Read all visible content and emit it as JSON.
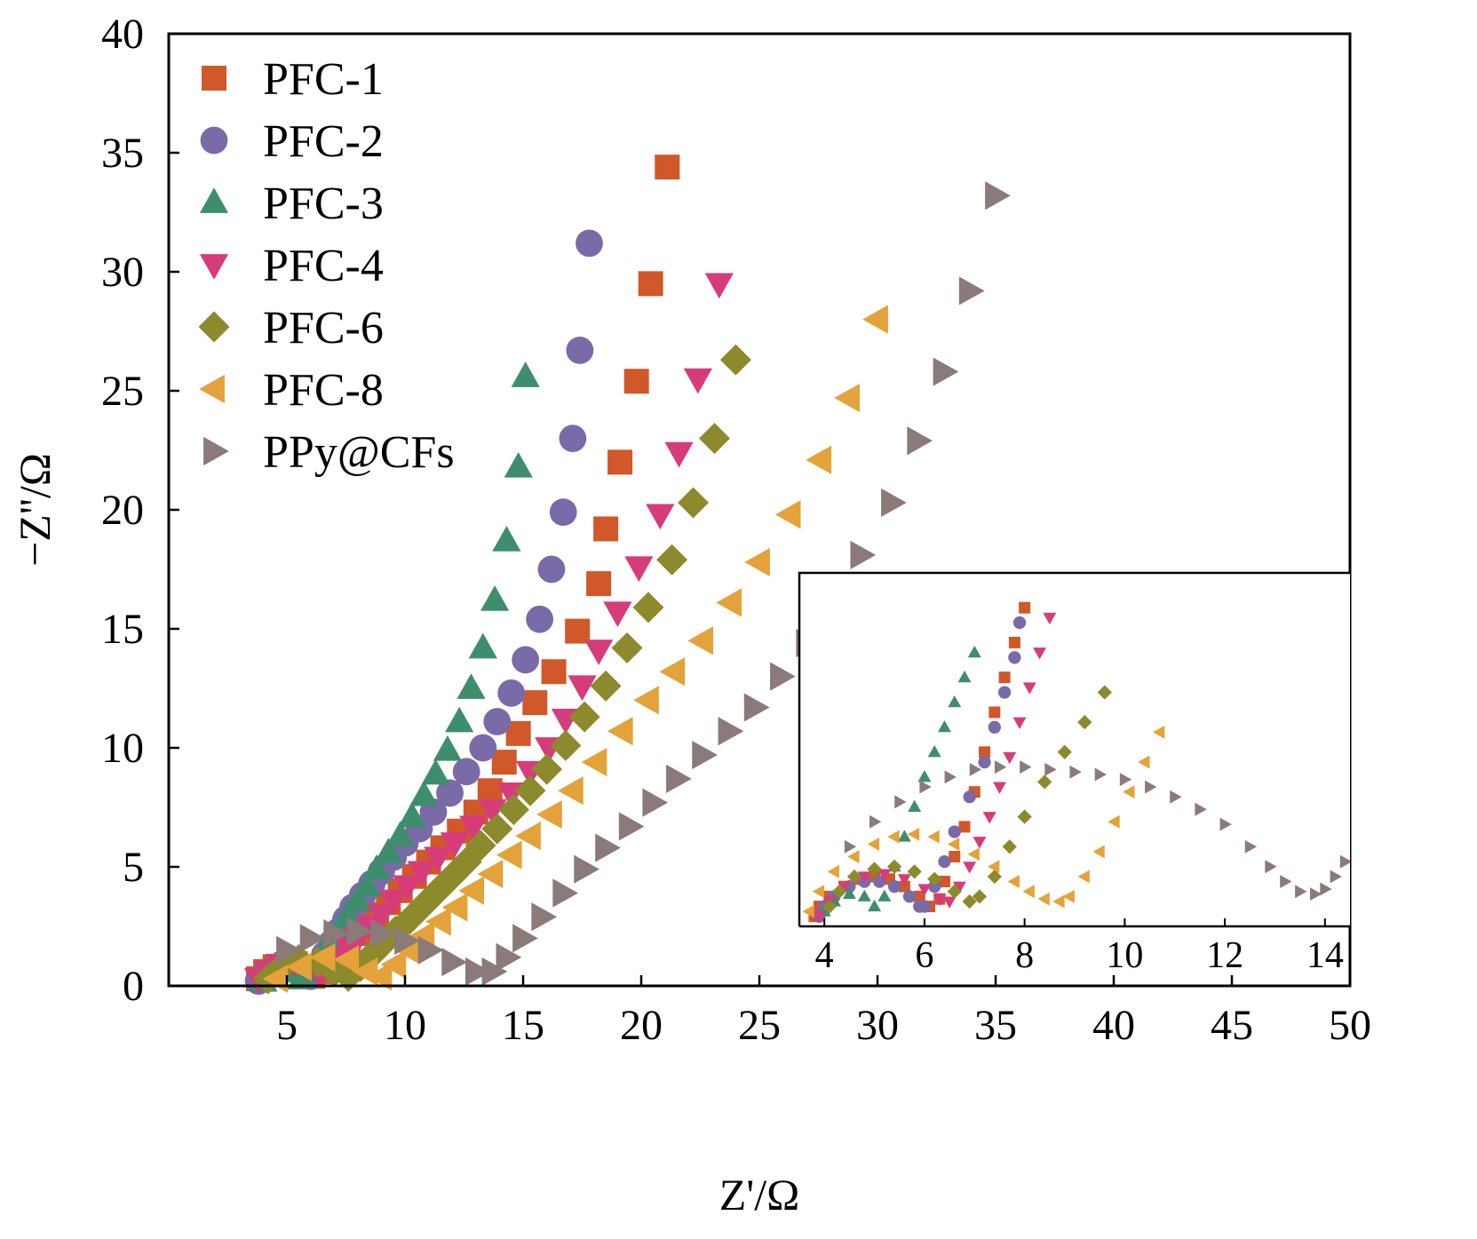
{
  "chart_data": [
    {
      "type": "scatter",
      "xlabel": "Z'/Ω",
      "ylabel": "−Z''/Ω",
      "xlim": [
        0,
        50
      ],
      "ylim": [
        0,
        40
      ],
      "xticks": [
        5,
        10,
        15,
        20,
        25,
        30,
        35,
        40,
        45,
        50
      ],
      "yticks": [
        0,
        5,
        10,
        15,
        20,
        25,
        30,
        35,
        40
      ],
      "grid": false,
      "legend_position": "top-left",
      "series": [
        {
          "name": "PFC-1",
          "marker": "square",
          "color": "#d0582a",
          "x": [
            3.8,
            4.1,
            4.5,
            5.0,
            5.6,
            6.1,
            6.5,
            6.9,
            7.3,
            7.6,
            8.0,
            8.4,
            8.8,
            9.3,
            9.8,
            10.4,
            11.0,
            11.6,
            12.3,
            13.0,
            13.6,
            14.2,
            14.8,
            15.5,
            16.3,
            17.3,
            18.2,
            18.5,
            19.1,
            19.8,
            20.4,
            21.1
          ],
          "y": [
            0.3,
            0.6,
            0.8,
            0.9,
            0.7,
            0.4,
            0.6,
            1.0,
            1.4,
            1.8,
            2.2,
            2.6,
            3.0,
            3.5,
            4.0,
            4.6,
            5.2,
            5.8,
            6.5,
            7.3,
            8.2,
            9.4,
            10.6,
            11.9,
            13.2,
            14.9,
            16.9,
            19.2,
            22.0,
            25.4,
            29.5,
            34.4
          ]
        },
        {
          "name": "PFC-2",
          "marker": "circle",
          "color": "#7a6aa8",
          "x": [
            3.8,
            4.1,
            4.6,
            5.1,
            5.6,
            6.0,
            6.3,
            6.6,
            6.9,
            7.2,
            7.5,
            7.8,
            8.2,
            8.6,
            9.0,
            9.5,
            10.0,
            10.6,
            11.2,
            11.9,
            12.6,
            13.3,
            13.9,
            14.5,
            15.1,
            15.7,
            16.2,
            16.7,
            17.1,
            17.4,
            17.8
          ],
          "y": [
            0.2,
            0.5,
            0.8,
            0.9,
            0.7,
            0.4,
            0.8,
            1.3,
            1.8,
            2.3,
            2.8,
            3.3,
            3.8,
            4.3,
            4.8,
            5.4,
            6.0,
            6.6,
            7.3,
            8.1,
            9.0,
            10.0,
            11.1,
            12.3,
            13.7,
            15.4,
            17.5,
            19.9,
            23.0,
            26.7,
            31.2
          ]
        },
        {
          "name": "PFC-3",
          "marker": "triangle-up",
          "color": "#3e8e6e",
          "x": [
            4.0,
            4.4,
            4.8,
            5.2,
            5.6,
            6.0,
            6.4,
            6.8,
            7.2,
            7.6,
            8.0,
            8.4,
            8.8,
            9.3,
            9.8,
            10.3,
            10.8,
            11.3,
            11.8,
            12.3,
            12.8,
            13.3,
            13.8,
            14.3,
            14.8,
            15.1
          ],
          "y": [
            0.2,
            0.5,
            0.7,
            0.6,
            0.3,
            0.6,
            1.2,
            1.8,
            2.4,
            3.0,
            3.6,
            4.2,
            4.9,
            5.6,
            6.3,
            7.1,
            8.0,
            8.9,
            9.9,
            11.1,
            12.5,
            14.2,
            16.2,
            18.7,
            21.8,
            25.6
          ]
        },
        {
          "name": "PFC-4",
          "marker": "triangle-down",
          "color": "#d63c7a",
          "x": [
            3.8,
            4.2,
            4.7,
            5.3,
            5.9,
            6.4,
            6.8,
            7.2,
            7.6,
            8.0,
            8.5,
            9.0,
            9.5,
            10.1,
            10.7,
            11.4,
            12.1,
            12.9,
            13.7,
            14.5,
            15.3,
            16.1,
            16.8,
            17.5,
            18.2,
            19.0,
            19.9,
            20.8,
            21.6,
            22.4,
            23.3
          ],
          "y": [
            0.3,
            0.6,
            0.9,
            1.0,
            0.8,
            0.5,
            0.8,
            1.2,
            1.6,
            2.0,
            2.5,
            3.0,
            3.6,
            4.2,
            4.8,
            5.4,
            6.0,
            6.7,
            7.4,
            8.1,
            9.0,
            10.0,
            11.2,
            12.6,
            14.1,
            15.7,
            17.6,
            19.8,
            22.4,
            25.5,
            29.5
          ]
        },
        {
          "name": "PFC-6",
          "marker": "diamond",
          "color": "#8c8a2c",
          "x": [
            4.2,
            4.8,
            5.5,
            6.3,
            7.0,
            7.6,
            8.1,
            8.6,
            9.1,
            9.6,
            10.2,
            10.8,
            11.4,
            12.0,
            12.6,
            13.2,
            13.9,
            14.6,
            15.3,
            16.0,
            16.8,
            17.6,
            18.5,
            19.4,
            20.3,
            21.3,
            22.2,
            23.1,
            24.0
          ],
          "y": [
            0.3,
            0.8,
            1.1,
            1.0,
            0.6,
            0.4,
            0.8,
            1.3,
            1.8,
            2.3,
            2.8,
            3.4,
            4.0,
            4.6,
            5.2,
            5.9,
            6.6,
            7.4,
            8.2,
            9.1,
            10.1,
            11.3,
            12.6,
            14.2,
            15.9,
            17.9,
            20.3,
            23.0,
            26.3
          ]
        },
        {
          "name": "PFC-8",
          "marker": "triangle-left",
          "color": "#e4a23a",
          "x": [
            4.6,
            5.6,
            6.6,
            7.6,
            8.4,
            9.0,
            9.6,
            10.2,
            10.8,
            11.5,
            12.2,
            12.9,
            13.7,
            14.5,
            15.3,
            16.2,
            17.1,
            18.1,
            19.2,
            20.3,
            21.4,
            22.6,
            23.8,
            25.0,
            26.3,
            27.6,
            28.8,
            30.0
          ],
          "y": [
            0.3,
            0.8,
            1.2,
            1.1,
            0.6,
            0.4,
            0.9,
            1.5,
            2.1,
            2.7,
            3.3,
            4.0,
            4.7,
            5.5,
            6.3,
            7.2,
            8.2,
            9.4,
            10.7,
            12.0,
            13.2,
            14.5,
            16.1,
            17.8,
            19.8,
            22.1,
            24.7,
            28.0
          ]
        },
        {
          "name": "PPy@CFs",
          "marker": "triangle-right",
          "color": "#8a7b78",
          "x": [
            5.0,
            6.0,
            7.0,
            8.0,
            9.0,
            10.0,
            11.0,
            12.0,
            13.0,
            13.7,
            14.3,
            15.0,
            15.8,
            16.7,
            17.6,
            18.5,
            19.5,
            20.5,
            21.5,
            22.6,
            23.7,
            24.8,
            25.9,
            27.0,
            28.1,
            29.3,
            30.6,
            31.7,
            32.8,
            33.9,
            35.0
          ],
          "y": [
            1.5,
            2.0,
            2.2,
            2.3,
            2.2,
            1.9,
            1.5,
            1.0,
            0.6,
            0.6,
            1.2,
            2.0,
            2.9,
            3.9,
            4.9,
            5.8,
            6.7,
            7.7,
            8.7,
            9.7,
            10.7,
            11.7,
            13.0,
            14.4,
            16.1,
            18.1,
            20.3,
            22.9,
            25.8,
            29.2,
            33.2
          ]
        }
      ]
    },
    {
      "type": "scatter",
      "role": "inset",
      "xlim": [
        3.5,
        14.5
      ],
      "ylim": [
        -0.1,
        7.0
      ],
      "xticks": [
        4,
        6,
        8,
        10,
        12,
        14
      ],
      "grid": false,
      "series": [
        {
          "name": "PFC-1",
          "marker": "square",
          "color": "#d0582a",
          "x": [
            3.8,
            3.9,
            4.1,
            4.4,
            4.7,
            5.0,
            5.3,
            5.6,
            5.9,
            6.1,
            6.3,
            6.4,
            6.6,
            6.8,
            7.0,
            7.2,
            7.4,
            7.6,
            7.8,
            8.0
          ],
          "y": [
            0.1,
            0.3,
            0.5,
            0.7,
            0.85,
            0.9,
            0.85,
            0.7,
            0.5,
            0.3,
            0.45,
            0.8,
            1.3,
            1.9,
            2.6,
            3.4,
            4.2,
            4.9,
            5.6,
            6.3
          ]
        },
        {
          "name": "PFC-2",
          "marker": "circle",
          "color": "#7a6aa8",
          "x": [
            3.9,
            4.0,
            4.2,
            4.5,
            4.8,
            5.1,
            5.4,
            5.7,
            5.9,
            6.0,
            6.2,
            6.4,
            6.6,
            6.9,
            7.2,
            7.4,
            7.6,
            7.8,
            7.9
          ],
          "y": [
            0.1,
            0.3,
            0.5,
            0.7,
            0.8,
            0.8,
            0.7,
            0.5,
            0.3,
            0.3,
            0.7,
            1.2,
            1.8,
            2.5,
            3.2,
            3.9,
            4.6,
            5.3,
            6.0
          ]
        },
        {
          "name": "PFC-3",
          "marker": "triangle-up",
          "color": "#3e8e6e",
          "x": [
            4.0,
            4.2,
            4.5,
            4.8,
            5.0,
            5.2,
            5.4,
            5.6,
            5.8,
            6.0,
            6.2,
            6.4,
            6.6,
            6.8,
            7.0
          ],
          "y": [
            0.2,
            0.4,
            0.55,
            0.5,
            0.3,
            0.5,
            1.1,
            1.7,
            2.3,
            2.9,
            3.4,
            3.9,
            4.4,
            4.9,
            5.4
          ]
        },
        {
          "name": "PFC-4",
          "marker": "triangle-down",
          "color": "#d63c7a",
          "x": [
            3.9,
            4.1,
            4.4,
            4.8,
            5.2,
            5.6,
            6.0,
            6.3,
            6.5,
            6.7,
            6.9,
            7.1,
            7.3,
            7.5,
            7.7,
            7.9,
            8.1,
            8.3,
            8.5
          ],
          "y": [
            0.1,
            0.4,
            0.7,
            0.9,
            0.95,
            0.85,
            0.65,
            0.45,
            0.4,
            0.7,
            1.1,
            1.6,
            2.1,
            2.7,
            3.3,
            4.0,
            4.7,
            5.4,
            6.1
          ]
        },
        {
          "name": "PFC-6",
          "marker": "diamond",
          "color": "#8c8a2c",
          "x": [
            4.1,
            4.3,
            4.6,
            5.0,
            5.4,
            5.8,
            6.2,
            6.6,
            6.9,
            7.1,
            7.4,
            7.7,
            8.0,
            8.4,
            8.8,
            9.2,
            9.6
          ],
          "y": [
            0.3,
            0.6,
            0.9,
            1.05,
            1.1,
            1.0,
            0.85,
            0.6,
            0.4,
            0.5,
            0.9,
            1.5,
            2.1,
            2.8,
            3.4,
            4.0,
            4.6
          ]
        },
        {
          "name": "PFC-8",
          "marker": "triangle-left",
          "color": "#e4a23a",
          "x": [
            3.7,
            3.9,
            4.2,
            4.6,
            5.0,
            5.4,
            5.8,
            6.2,
            6.6,
            7.0,
            7.4,
            7.8,
            8.1,
            8.4,
            8.7,
            8.9,
            9.2,
            9.5,
            9.8,
            10.1,
            10.4,
            10.7
          ],
          "y": [
            0.2,
            0.6,
            1.0,
            1.3,
            1.55,
            1.7,
            1.75,
            1.7,
            1.55,
            1.35,
            1.1,
            0.8,
            0.6,
            0.45,
            0.4,
            0.5,
            0.9,
            1.4,
            2.0,
            2.6,
            3.2,
            3.8
          ]
        },
        {
          "name": "PPy@CFs",
          "marker": "triangle-right",
          "color": "#8a7b78",
          "x": [
            4.5,
            5.0,
            5.5,
            6.0,
            6.5,
            7.0,
            7.5,
            8.0,
            8.5,
            9.0,
            9.5,
            10.0,
            10.5,
            11.0,
            11.5,
            12.0,
            12.5,
            12.9,
            13.2,
            13.5,
            13.8,
            14.0,
            14.2,
            14.4
          ],
          "y": [
            1.5,
            2.0,
            2.4,
            2.7,
            2.9,
            3.05,
            3.1,
            3.1,
            3.05,
            3.0,
            2.95,
            2.85,
            2.7,
            2.5,
            2.25,
            1.95,
            1.5,
            1.1,
            0.8,
            0.6,
            0.55,
            0.65,
            0.9,
            1.2
          ]
        }
      ]
    }
  ]
}
